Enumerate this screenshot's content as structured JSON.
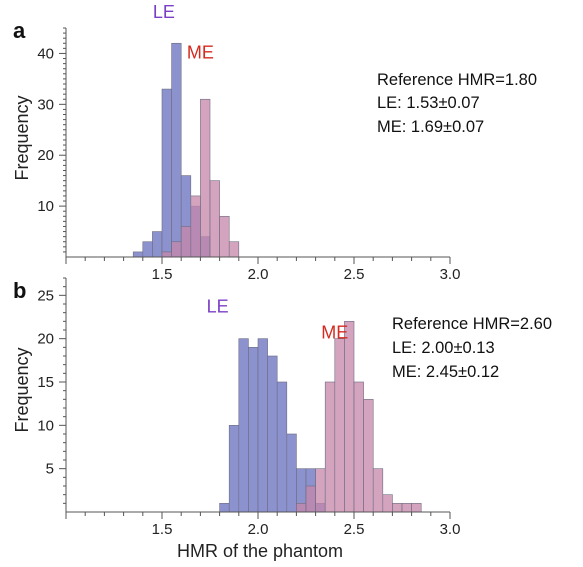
{
  "figure": {
    "xlabel": "HMR of the phantom",
    "ylabel": "Frequency"
  },
  "colors": {
    "LE": "#7f86c9",
    "ME": "#c586a9",
    "LE_label": "#7b3fc6",
    "ME_label": "#d42a1f"
  },
  "chart_data": [
    {
      "panel": "a",
      "type": "bar",
      "xlabel": "",
      "ylabel": "Frequency",
      "xlim": [
        1.0,
        3.0
      ],
      "ylim": [
        0,
        45
      ],
      "xticks": [
        "1.5",
        "2.0",
        "2.5",
        "3.0"
      ],
      "yticks": [
        "10",
        "20",
        "30",
        "40"
      ],
      "bin_width": 0.05,
      "annotation_lines": [
        "Reference HMR=1.80",
        "LE: 1.53±0.07",
        "ME: 1.69±0.07"
      ],
      "series": [
        {
          "name": "LE",
          "label_x": 1.51,
          "label_y": 47,
          "bins": [
            [
              1.35,
              1
            ],
            [
              1.4,
              3
            ],
            [
              1.45,
              5
            ],
            [
              1.5,
              33
            ],
            [
              1.55,
              42
            ],
            [
              1.6,
              16
            ],
            [
              1.65,
              10
            ],
            [
              1.7,
              4
            ]
          ]
        },
        {
          "name": "ME",
          "label_x": 1.7,
          "label_y": 39,
          "bins": [
            [
              1.5,
              1
            ],
            [
              1.55,
              3
            ],
            [
              1.6,
              6
            ],
            [
              1.65,
              12
            ],
            [
              1.7,
              31
            ],
            [
              1.75,
              15
            ],
            [
              1.8,
              8
            ],
            [
              1.85,
              3
            ]
          ]
        }
      ]
    },
    {
      "panel": "b",
      "type": "bar",
      "xlabel": "HMR of the phantom",
      "ylabel": "Frequency",
      "xlim": [
        1.0,
        3.0
      ],
      "ylim": [
        0,
        27
      ],
      "xticks": [
        "1.5",
        "2.0",
        "2.5",
        "3.0"
      ],
      "yticks": [
        "5",
        "10",
        "15",
        "20",
        "25"
      ],
      "bin_width": 0.05,
      "annotation_lines": [
        "Reference HMR=2.60",
        "LE: 2.00±0.13",
        "ME: 2.45±0.12"
      ],
      "series": [
        {
          "name": "LE",
          "label_x": 1.79,
          "label_y": 23,
          "bins": [
            [
              1.8,
              1
            ],
            [
              1.85,
              10
            ],
            [
              1.9,
              20
            ],
            [
              1.95,
              19
            ],
            [
              2.0,
              20
            ],
            [
              2.05,
              18
            ],
            [
              2.1,
              15
            ],
            [
              2.15,
              9
            ],
            [
              2.2,
              5
            ],
            [
              2.25,
              5
            ],
            [
              2.3,
              1
            ]
          ]
        },
        {
          "name": "ME",
          "label_x": 2.4,
          "label_y": 20,
          "bins": [
            [
              2.2,
              1
            ],
            [
              2.25,
              3
            ],
            [
              2.3,
              5
            ],
            [
              2.35,
              15
            ],
            [
              2.4,
              20
            ],
            [
              2.45,
              22
            ],
            [
              2.5,
              15
            ],
            [
              2.55,
              13
            ],
            [
              2.6,
              5
            ],
            [
              2.65,
              2
            ],
            [
              2.7,
              1
            ],
            [
              2.75,
              1
            ],
            [
              2.8,
              1
            ]
          ]
        }
      ]
    }
  ]
}
